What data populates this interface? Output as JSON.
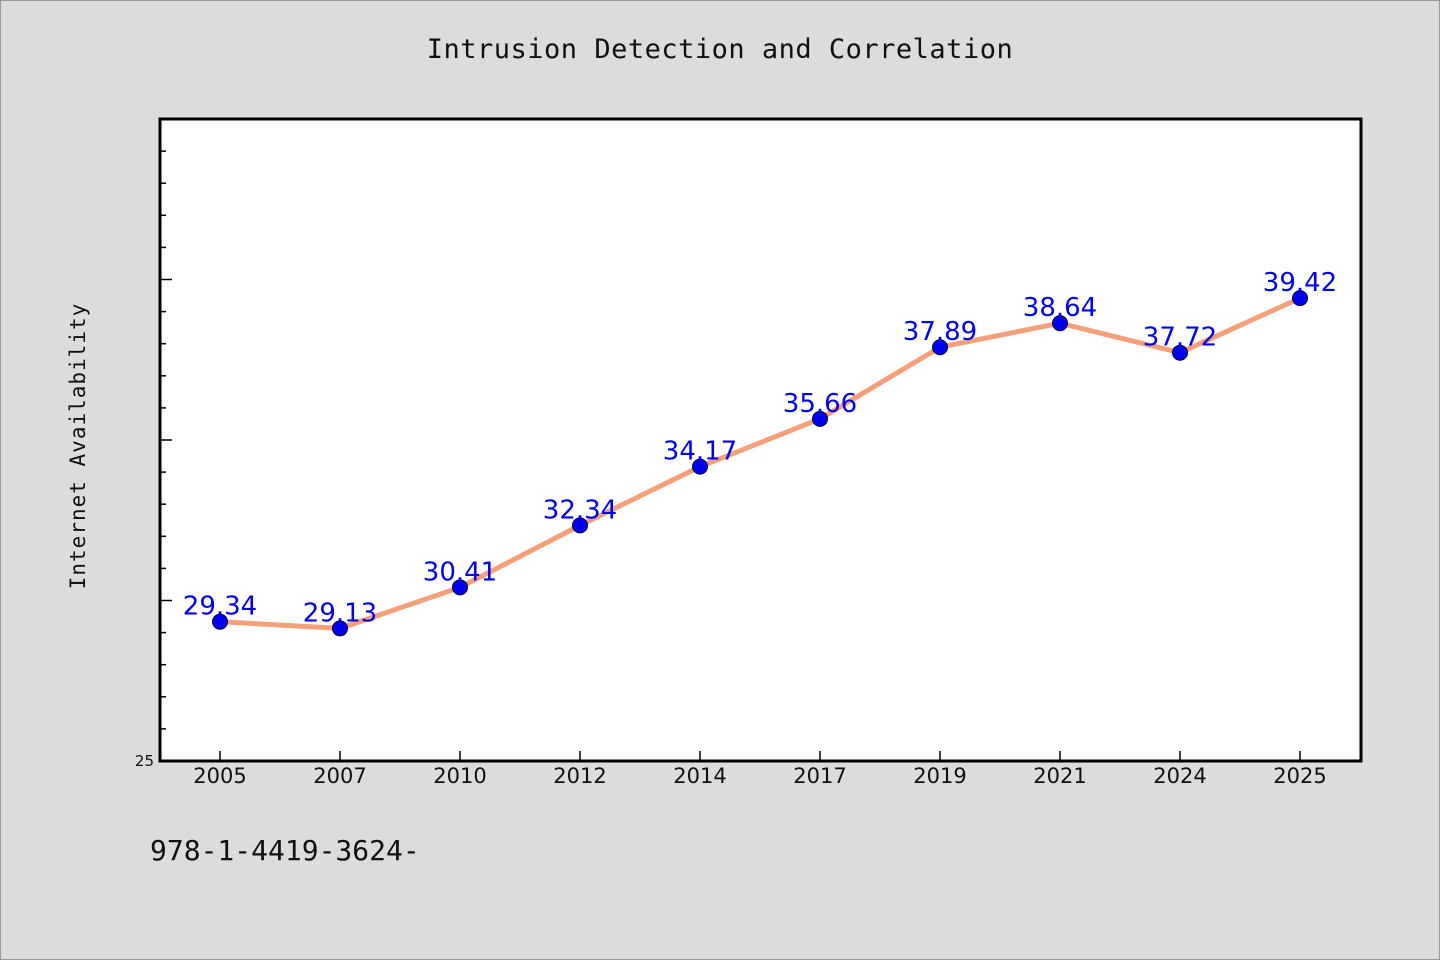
{
  "chart_data": {
    "type": "line",
    "title": "Intrusion Detection and Correlation",
    "xlabel": "",
    "ylabel": "Internet Availability",
    "categories": [
      "2005",
      "2007",
      "2010",
      "2012",
      "2014",
      "2017",
      "2019",
      "2021",
      "2024",
      "2025"
    ],
    "series": [
      {
        "values": [
          29.34,
          29.13,
          30.41,
          32.34,
          34.17,
          35.66,
          37.89,
          38.64,
          37.72,
          39.42
        ]
      }
    ],
    "data_labels": [
      "29.34",
      "29.13",
      "30.41",
      "32.34",
      "34.17",
      "35.66",
      "37.89",
      "38.64",
      "37.72",
      "39.42"
    ],
    "ylim": [
      25,
      45
    ],
    "y_tick_labels": [
      "25"
    ],
    "grid": false,
    "line_color": "#f4a07a",
    "marker_color": "#0000ee",
    "label_color": "#0000ee"
  },
  "footer_text": "978-1-4419-3624-"
}
